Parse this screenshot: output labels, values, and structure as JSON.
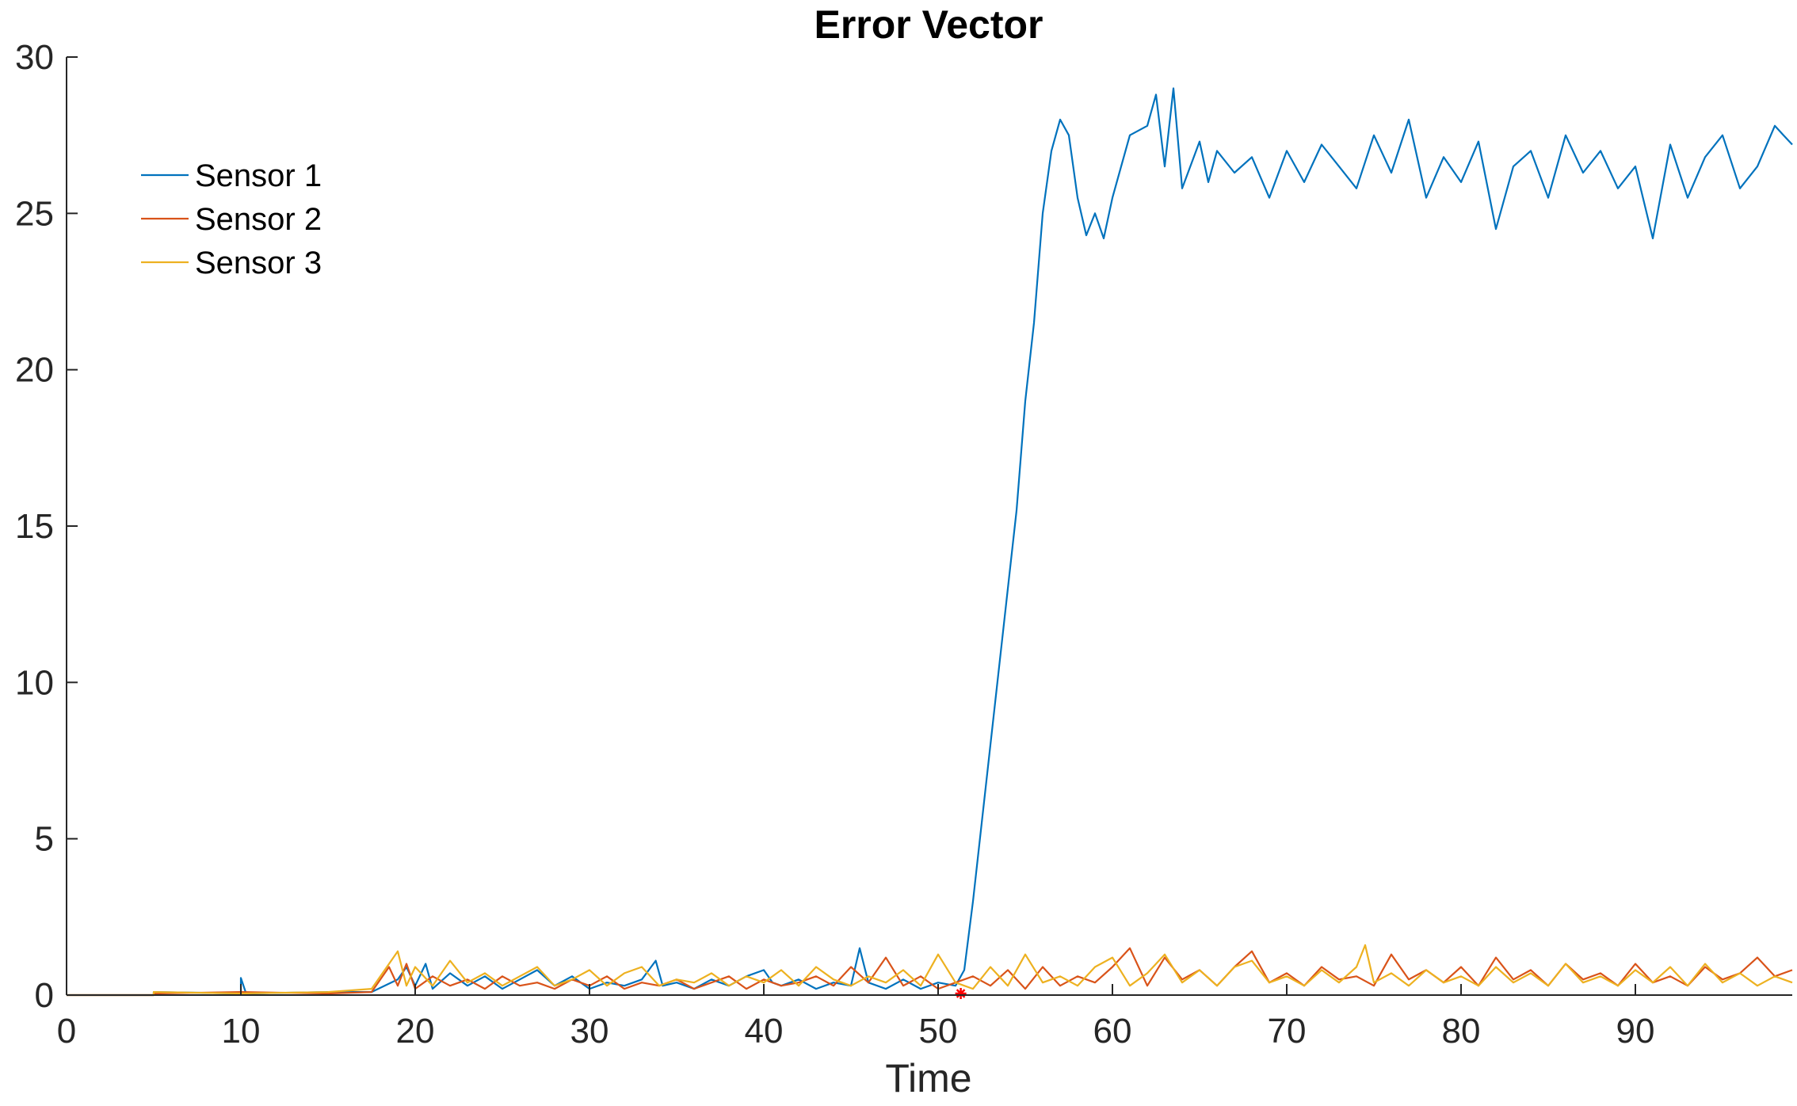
{
  "chart_data": {
    "type": "line",
    "title": "Error Vector",
    "xlabel": "Time",
    "ylabel": "",
    "xlim": [
      0,
      99
    ],
    "ylim": [
      0,
      30
    ],
    "xticks": [
      0,
      10,
      20,
      30,
      40,
      50,
      60,
      70,
      80,
      90
    ],
    "yticks": [
      0,
      5,
      10,
      15,
      20,
      25,
      30
    ],
    "grid": false,
    "legend_position": "top-left",
    "marker": {
      "x": 51.3,
      "y": 0,
      "color": "#ff0000",
      "symbol": "asterisk"
    },
    "series": [
      {
        "name": "Sensor 1",
        "color": "#0072bd",
        "x": [
          5,
          10,
          10,
          10.3,
          15,
          17.5,
          19,
          19.5,
          20,
          20.6,
          21,
          22,
          23,
          24,
          25,
          26,
          27,
          28,
          29,
          30,
          31,
          32,
          33,
          33.8,
          34.2,
          35,
          36,
          37,
          38,
          39,
          40,
          40.5,
          41,
          42,
          43,
          44,
          45,
          45.5,
          46,
          47,
          48,
          49,
          50,
          51,
          51.5,
          52,
          52.5,
          53,
          53.5,
          54,
          54.5,
          55,
          55.5,
          56,
          56.5,
          57,
          57.5,
          58,
          58.5,
          59,
          59.5,
          60,
          60.5,
          61,
          62,
          62.5,
          63,
          63.5,
          64,
          65,
          65.5,
          66,
          67,
          68,
          69,
          70,
          71,
          72,
          73,
          74,
          75,
          76,
          77,
          78,
          79,
          80,
          81,
          82,
          83,
          84,
          85,
          86,
          87,
          88,
          89,
          90,
          91,
          92,
          93,
          94,
          95,
          96,
          97,
          98,
          98.5,
          99
        ],
        "values": [
          0.1,
          0.05,
          0.55,
          0.05,
          0.1,
          0.1,
          0.5,
          0.9,
          0.3,
          1.0,
          0.2,
          0.7,
          0.3,
          0.6,
          0.2,
          0.5,
          0.8,
          0.3,
          0.6,
          0.2,
          0.4,
          0.3,
          0.5,
          1.1,
          0.3,
          0.4,
          0.2,
          0.5,
          0.3,
          0.6,
          0.8,
          0.4,
          0.3,
          0.5,
          0.2,
          0.4,
          0.3,
          1.5,
          0.4,
          0.2,
          0.5,
          0.2,
          0.4,
          0.3,
          0.8,
          3.0,
          5.5,
          8.0,
          10.5,
          13.0,
          15.5,
          19.0,
          21.5,
          25.0,
          27.0,
          28.0,
          27.5,
          25.5,
          24.3,
          25.0,
          24.2,
          25.5,
          26.5,
          27.5,
          27.8,
          28.8,
          26.5,
          29.0,
          25.8,
          27.3,
          26.0,
          27.0,
          26.3,
          26.8,
          25.5,
          27.0,
          26.0,
          27.2,
          26.5,
          25.8,
          27.5,
          26.3,
          28.0,
          25.5,
          26.8,
          26.0,
          27.3,
          24.5,
          26.5,
          27.0,
          25.5,
          27.5,
          26.3,
          27.0,
          25.8,
          26.5,
          24.2,
          27.2,
          25.5,
          26.8,
          27.5,
          25.8,
          26.5,
          27.8,
          27.5,
          27.2
        ]
      },
      {
        "name": "Sensor 2",
        "color": "#d95319",
        "x": [
          5,
          10,
          15,
          17.5,
          18.5,
          19,
          19.5,
          20,
          21,
          22,
          23,
          24,
          25,
          26,
          27,
          28,
          29,
          30,
          31,
          32,
          33,
          34,
          35,
          36,
          37,
          38,
          39,
          40,
          41,
          42,
          43,
          44,
          45,
          46,
          47,
          48,
          49,
          50,
          51,
          52,
          53,
          54,
          55,
          56,
          57,
          58,
          59,
          60,
          61,
          62,
          63,
          64,
          65,
          66,
          67,
          68,
          69,
          70,
          71,
          72,
          73,
          74,
          75,
          76,
          77,
          78,
          79,
          80,
          81,
          82,
          83,
          84,
          85,
          86,
          87,
          88,
          89,
          90,
          91,
          92,
          93,
          94,
          95,
          96,
          97,
          98,
          99
        ],
        "values": [
          0.05,
          0.1,
          0.05,
          0.1,
          0.9,
          0.3,
          1.0,
          0.2,
          0.6,
          0.3,
          0.5,
          0.2,
          0.6,
          0.3,
          0.4,
          0.2,
          0.5,
          0.3,
          0.6,
          0.2,
          0.4,
          0.3,
          0.5,
          0.2,
          0.4,
          0.6,
          0.2,
          0.5,
          0.3,
          0.4,
          0.6,
          0.3,
          0.9,
          0.4,
          1.2,
          0.3,
          0.6,
          0.2,
          0.4,
          0.6,
          0.3,
          0.8,
          0.2,
          0.9,
          0.3,
          0.6,
          0.4,
          0.9,
          1.5,
          0.3,
          1.2,
          0.5,
          0.8,
          0.3,
          0.9,
          1.4,
          0.4,
          0.7,
          0.3,
          0.9,
          0.5,
          0.6,
          0.3,
          1.3,
          0.5,
          0.8,
          0.4,
          0.9,
          0.3,
          1.2,
          0.5,
          0.8,
          0.3,
          1.0,
          0.5,
          0.7,
          0.3,
          1.0,
          0.4,
          0.6,
          0.3,
          0.9,
          0.5,
          0.7,
          1.2,
          0.6,
          0.8
        ]
      },
      {
        "name": "Sensor 3",
        "color": "#edb120",
        "x": [
          5,
          10,
          15,
          17.5,
          19,
          19.5,
          20,
          21,
          22,
          23,
          24,
          25,
          26,
          27,
          28,
          29,
          30,
          31,
          32,
          33,
          34,
          35,
          36,
          37,
          38,
          39,
          40,
          41,
          42,
          43,
          44,
          45,
          46,
          47,
          48,
          49,
          50,
          51,
          52,
          53,
          54,
          55,
          56,
          57,
          58,
          59,
          60,
          61,
          62,
          63,
          64,
          65,
          66,
          67,
          68,
          69,
          70,
          71,
          72,
          73,
          74,
          74.5,
          75,
          76,
          77,
          78,
          79,
          80,
          81,
          82,
          83,
          84,
          85,
          86,
          87,
          88,
          89,
          90,
          91,
          92,
          93,
          94,
          95,
          96,
          97,
          98,
          99
        ],
        "values": [
          0.1,
          0.05,
          0.1,
          0.2,
          1.4,
          0.3,
          0.9,
          0.3,
          1.1,
          0.4,
          0.7,
          0.3,
          0.6,
          0.9,
          0.3,
          0.5,
          0.8,
          0.3,
          0.7,
          0.9,
          0.3,
          0.5,
          0.4,
          0.7,
          0.3,
          0.6,
          0.4,
          0.8,
          0.3,
          0.9,
          0.5,
          0.3,
          0.6,
          0.4,
          0.8,
          0.3,
          1.3,
          0.4,
          0.2,
          0.9,
          0.3,
          1.3,
          0.4,
          0.6,
          0.3,
          0.9,
          1.2,
          0.3,
          0.7,
          1.3,
          0.4,
          0.8,
          0.3,
          0.9,
          1.1,
          0.4,
          0.6,
          0.3,
          0.8,
          0.4,
          0.9,
          1.6,
          0.4,
          0.7,
          0.3,
          0.8,
          0.4,
          0.6,
          0.3,
          0.9,
          0.4,
          0.7,
          0.3,
          1.0,
          0.4,
          0.6,
          0.3,
          0.8,
          0.4,
          0.9,
          0.3,
          1.0,
          0.4,
          0.7,
          0.3,
          0.6,
          0.4
        ]
      }
    ]
  }
}
